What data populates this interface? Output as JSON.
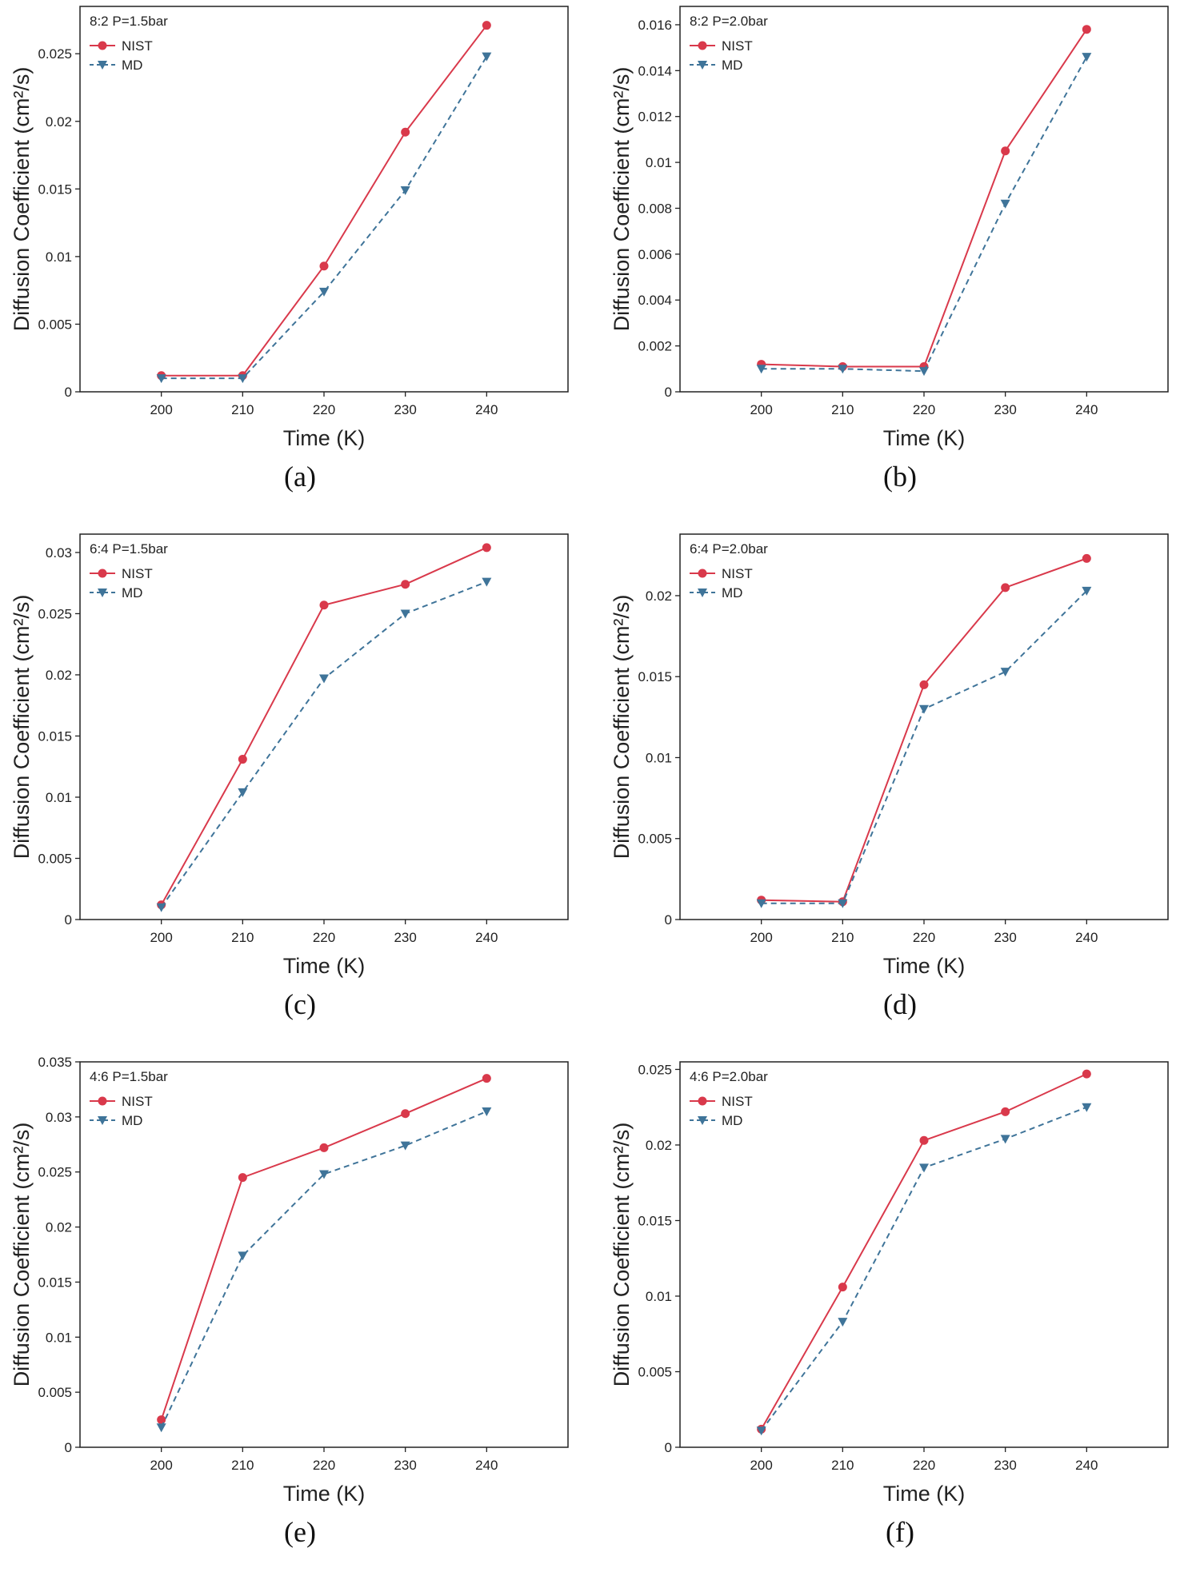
{
  "colors": {
    "nist": "#d9394b",
    "md": "#3f7499",
    "axis": "#222222"
  },
  "legend": {
    "nist": "NIST",
    "md": "MD"
  },
  "chart_data": [
    {
      "type": "line",
      "caption": "(a)",
      "annotation": "8:2  P=1.5bar",
      "xlabel": "Time (K)",
      "ylabel": "Diffusion Coefficient (cm²/s)",
      "x": [
        200,
        210,
        220,
        230,
        240
      ],
      "xlim": [
        190,
        250
      ],
      "ylim": [
        0,
        0.0285
      ],
      "yticks": [
        0,
        0.005,
        0.01,
        0.015,
        0.02,
        0.025
      ],
      "ytick_labels": [
        "0",
        "0.005",
        "0.01",
        "0.015",
        "0.02",
        "0.025"
      ],
      "legend_position": "top-left",
      "series": [
        {
          "name": "NIST",
          "style": "solid-circle",
          "values": [
            0.0012,
            0.0012,
            0.0093,
            0.0192,
            0.0271
          ]
        },
        {
          "name": "MD",
          "style": "dashed-triangle",
          "values": [
            0.001,
            0.001,
            0.0074,
            0.0149,
            0.0248
          ]
        }
      ]
    },
    {
      "type": "line",
      "caption": "(b)",
      "annotation": "8:2  P=2.0bar",
      "xlabel": "Time (K)",
      "ylabel": "Diffusion Coefficient (cm²/s)",
      "x": [
        200,
        210,
        220,
        230,
        240
      ],
      "xlim": [
        190,
        250
      ],
      "ylim": [
        0,
        0.0168
      ],
      "yticks": [
        0,
        0.002,
        0.004,
        0.006,
        0.008,
        0.01,
        0.012,
        0.014,
        0.016
      ],
      "ytick_labels": [
        "0",
        "0.002",
        "0.004",
        "0.006",
        "0.008",
        "0.01",
        "0.012",
        "0.014",
        "0.016"
      ],
      "legend_position": "top-left",
      "series": [
        {
          "name": "NIST",
          "style": "solid-circle",
          "values": [
            0.0012,
            0.0011,
            0.0011,
            0.0105,
            0.0158
          ]
        },
        {
          "name": "MD",
          "style": "dashed-triangle",
          "values": [
            0.001,
            0.001,
            0.0009,
            0.0082,
            0.0146
          ]
        }
      ]
    },
    {
      "type": "line",
      "caption": "(c)",
      "annotation": "6:4  P=1.5bar",
      "xlabel": "Time (K)",
      "ylabel": "Diffusion Coefficient (cm²/s)",
      "x": [
        200,
        210,
        220,
        230,
        240
      ],
      "xlim": [
        190,
        250
      ],
      "ylim": [
        0,
        0.0315
      ],
      "yticks": [
        0,
        0.005,
        0.01,
        0.015,
        0.02,
        0.025,
        0.03
      ],
      "ytick_labels": [
        "0",
        "0.005",
        "0.01",
        "0.015",
        "0.02",
        "0.025",
        "0.03"
      ],
      "legend_position": "top-left",
      "series": [
        {
          "name": "NIST",
          "style": "solid-circle",
          "values": [
            0.0012,
            0.0131,
            0.0257,
            0.0274,
            0.0304
          ]
        },
        {
          "name": "MD",
          "style": "dashed-triangle",
          "values": [
            0.001,
            0.0104,
            0.0197,
            0.025,
            0.0276
          ]
        }
      ]
    },
    {
      "type": "line",
      "caption": "(d)",
      "annotation": "6:4  P=2.0bar",
      "xlabel": "Time (K)",
      "ylabel": "Diffusion Coefficient (cm²/s)",
      "x": [
        200,
        210,
        220,
        230,
        240
      ],
      "xlim": [
        190,
        250
      ],
      "ylim": [
        0,
        0.0238
      ],
      "yticks": [
        0,
        0.005,
        0.01,
        0.015,
        0.02
      ],
      "ytick_labels": [
        "0",
        "0.005",
        "0.01",
        "0.015",
        "0.02"
      ],
      "legend_position": "top-left",
      "series": [
        {
          "name": "NIST",
          "style": "solid-circle",
          "values": [
            0.0012,
            0.0011,
            0.0145,
            0.0205,
            0.0223
          ]
        },
        {
          "name": "MD",
          "style": "dashed-triangle",
          "values": [
            0.001,
            0.001,
            0.013,
            0.0153,
            0.0203
          ]
        }
      ]
    },
    {
      "type": "line",
      "caption": "(e)",
      "annotation": "4:6  P=1.5bar",
      "xlabel": "Time (K)",
      "ylabel": "Diffusion Coefficient (cm²/s)",
      "x": [
        200,
        210,
        220,
        230,
        240
      ],
      "xlim": [
        190,
        250
      ],
      "ylim": [
        0,
        0.035
      ],
      "yticks": [
        0,
        0.005,
        0.01,
        0.015,
        0.02,
        0.025,
        0.03,
        0.035
      ],
      "ytick_labels": [
        "0",
        "0.005",
        "0.01",
        "0.015",
        "0.02",
        "0.025",
        "0.03",
        "0.035"
      ],
      "legend_position": "top-left",
      "series": [
        {
          "name": "NIST",
          "style": "solid-circle",
          "values": [
            0.0025,
            0.0245,
            0.0272,
            0.0303,
            0.0335
          ]
        },
        {
          "name": "MD",
          "style": "dashed-triangle",
          "values": [
            0.0018,
            0.0174,
            0.0248,
            0.0274,
            0.0305
          ]
        }
      ]
    },
    {
      "type": "line",
      "caption": "(f)",
      "annotation": "4:6  P=2.0bar",
      "xlabel": "Time (K)",
      "ylabel": "Diffusion Coefficient (cm²/s)",
      "x": [
        200,
        210,
        220,
        230,
        240
      ],
      "xlim": [
        190,
        250
      ],
      "ylim": [
        0,
        0.0255
      ],
      "yticks": [
        0,
        0.005,
        0.01,
        0.015,
        0.02,
        0.025
      ],
      "ytick_labels": [
        "0",
        "0.005",
        "0.01",
        "0.015",
        "0.02",
        "0.025"
      ],
      "legend_position": "top-left",
      "series": [
        {
          "name": "NIST",
          "style": "solid-circle",
          "values": [
            0.0012,
            0.0106,
            0.0203,
            0.0222,
            0.0247
          ]
        },
        {
          "name": "MD",
          "style": "dashed-triangle",
          "values": [
            0.0011,
            0.0083,
            0.0185,
            0.0204,
            0.0225
          ]
        }
      ]
    }
  ]
}
